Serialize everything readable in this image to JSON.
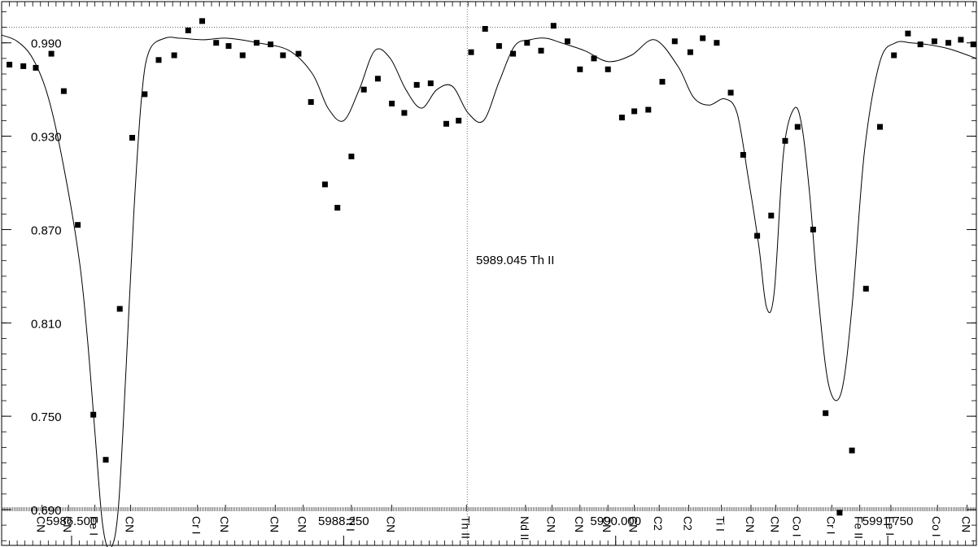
{
  "chart_data": {
    "type": "scatter",
    "annotation": "5989.045   Th II",
    "marker_wavelength": 5989.045,
    "reference_level": 1.0,
    "xlim": [
      5986.05,
      5992.32
    ],
    "ylim": [
      0.667,
      1.0165
    ],
    "x_ticks": [
      5986.5,
      5988.25,
      5990.0,
      5991.75
    ],
    "x_tick_labels": [
      "5986.500",
      "5988.250",
      "5990.000",
      "5991.750"
    ],
    "y_ticks": [
      0.69,
      0.75,
      0.81,
      0.87,
      0.93,
      0.99
    ],
    "y_tick_labels": [
      "0.690",
      "0.750",
      "0.810",
      "0.870",
      "0.930",
      "0.990"
    ],
    "series": [
      {
        "type": "scatter",
        "x": [
          5986.1,
          5986.19,
          5986.27,
          5986.37,
          5986.45,
          5986.54,
          5986.64,
          5986.72,
          5986.81,
          5986.89,
          5986.97,
          5987.06,
          5987.16,
          5987.25,
          5987.34,
          5987.43,
          5987.51,
          5987.6,
          5987.69,
          5987.78,
          5987.86,
          5987.96,
          5988.04,
          5988.13,
          5988.21,
          5988.3,
          5988.38,
          5988.47,
          5988.56,
          5988.64,
          5988.72,
          5988.81,
          5988.91,
          5988.99,
          5989.07,
          5989.16,
          5989.25,
          5989.34,
          5989.43,
          5989.52,
          5989.6,
          5989.69,
          5989.77,
          5989.86,
          5989.95,
          5990.04,
          5990.12,
          5990.21,
          5990.3,
          5990.38,
          5990.48,
          5990.56,
          5990.65,
          5990.74,
          5990.82,
          5990.91,
          5991.0,
          5991.09,
          5991.17,
          5991.27,
          5991.35,
          5991.44,
          5991.52,
          5991.61,
          5991.7,
          5991.79,
          5991.88,
          5991.96,
          5992.05,
          5992.14,
          5992.22,
          5992.3
        ],
        "y": [
          0.976,
          0.975,
          0.974,
          0.983,
          0.959,
          0.873,
          0.751,
          0.722,
          0.819,
          0.929,
          0.957,
          0.979,
          0.982,
          0.998,
          1.004,
          0.99,
          0.988,
          0.982,
          0.99,
          0.989,
          0.982,
          0.983,
          0.952,
          0.899,
          0.884,
          0.917,
          0.96,
          0.967,
          0.951,
          0.945,
          0.963,
          0.964,
          0.938,
          0.94,
          0.984,
          0.999,
          0.988,
          0.983,
          0.99,
          0.985,
          1.001,
          0.991,
          0.973,
          0.98,
          0.973,
          0.942,
          0.946,
          0.947,
          0.965,
          0.991,
          0.984,
          0.993,
          0.99,
          0.958,
          0.918,
          0.866,
          0.879,
          0.927,
          0.936,
          0.87,
          0.752,
          0.688,
          0.728,
          0.832,
          0.936,
          0.982,
          0.996,
          0.989,
          0.991,
          0.99,
          0.992,
          0.989
        ]
      },
      {
        "type": "line",
        "x": [
          5986.05,
          5986.15,
          5986.25,
          5986.35,
          5986.45,
          5986.55,
          5986.6,
          5986.65,
          5986.7,
          5986.75,
          5986.8,
          5986.85,
          5986.9,
          5986.95,
          5987.0,
          5987.1,
          5987.2,
          5987.35,
          5987.5,
          5987.7,
          5987.9,
          5988.05,
          5988.15,
          5988.25,
          5988.35,
          5988.45,
          5988.55,
          5988.65,
          5988.75,
          5988.85,
          5988.95,
          5989.05,
          5989.15,
          5989.25,
          5989.35,
          5989.45,
          5989.55,
          5989.65,
          5989.8,
          5989.95,
          5990.1,
          5990.25,
          5990.4,
          5990.5,
          5990.6,
          5990.7,
          5990.78,
          5990.85,
          5990.92,
          5990.97,
          5991.02,
          5991.08,
          5991.15,
          5991.2,
          5991.25,
          5991.3,
          5991.37,
          5991.45,
          5991.52,
          5991.6,
          5991.7,
          5991.8,
          5991.9,
          5992.0,
          5992.15,
          5992.32
        ],
        "y": [
          0.995,
          0.991,
          0.98,
          0.955,
          0.91,
          0.85,
          0.802,
          0.74,
          0.68,
          0.665,
          0.69,
          0.78,
          0.88,
          0.955,
          0.985,
          0.993,
          0.993,
          0.992,
          0.993,
          0.99,
          0.985,
          0.97,
          0.948,
          0.94,
          0.96,
          0.985,
          0.98,
          0.96,
          0.948,
          0.96,
          0.962,
          0.945,
          0.94,
          0.965,
          0.988,
          0.992,
          0.993,
          0.99,
          0.985,
          0.978,
          0.982,
          0.992,
          0.975,
          0.955,
          0.95,
          0.954,
          0.945,
          0.905,
          0.86,
          0.82,
          0.83,
          0.92,
          0.948,
          0.935,
          0.89,
          0.83,
          0.77,
          0.765,
          0.82,
          0.92,
          0.978,
          0.99,
          0.99,
          0.989,
          0.986,
          0.98
        ]
      }
    ],
    "line_labels": [
      {
        "text": "CN",
        "x": 5986.31
      },
      {
        "text": "CN",
        "x": 5986.48
      },
      {
        "text": "Fe I",
        "x": 5986.65
      },
      {
        "text": "CN",
        "x": 5986.88
      },
      {
        "text": "Cr I",
        "x": 5987.31
      },
      {
        "text": "CN",
        "x": 5987.49
      },
      {
        "text": "CN",
        "x": 5987.81
      },
      {
        "text": "CN",
        "x": 5987.99
      },
      {
        "text": "Ti I",
        "x": 5988.3
      },
      {
        "text": "CN",
        "x": 5988.56
      },
      {
        "text": "Th II",
        "x": 5989.04
      },
      {
        "text": "Nd II",
        "x": 5989.42
      },
      {
        "text": "CN",
        "x": 5989.59
      },
      {
        "text": "CN",
        "x": 5989.77
      },
      {
        "text": "CN",
        "x": 5989.95
      },
      {
        "text": "CN",
        "x": 5990.12
      },
      {
        "text": "C2",
        "x": 5990.28
      },
      {
        "text": "C2",
        "x": 5990.47
      },
      {
        "text": "Ti I",
        "x": 5990.68
      },
      {
        "text": "CN",
        "x": 5990.87
      },
      {
        "text": "CN",
        "x": 5991.03
      },
      {
        "text": "Co I",
        "x": 5991.17
      },
      {
        "text": "Cr I",
        "x": 5991.39
      },
      {
        "text": "Fe II",
        "x": 5991.57
      },
      {
        "text": "Fe I",
        "x": 5991.77
      },
      {
        "text": "Co I",
        "x": 5992.07
      },
      {
        "text": "CN",
        "x": 5992.26
      }
    ]
  }
}
